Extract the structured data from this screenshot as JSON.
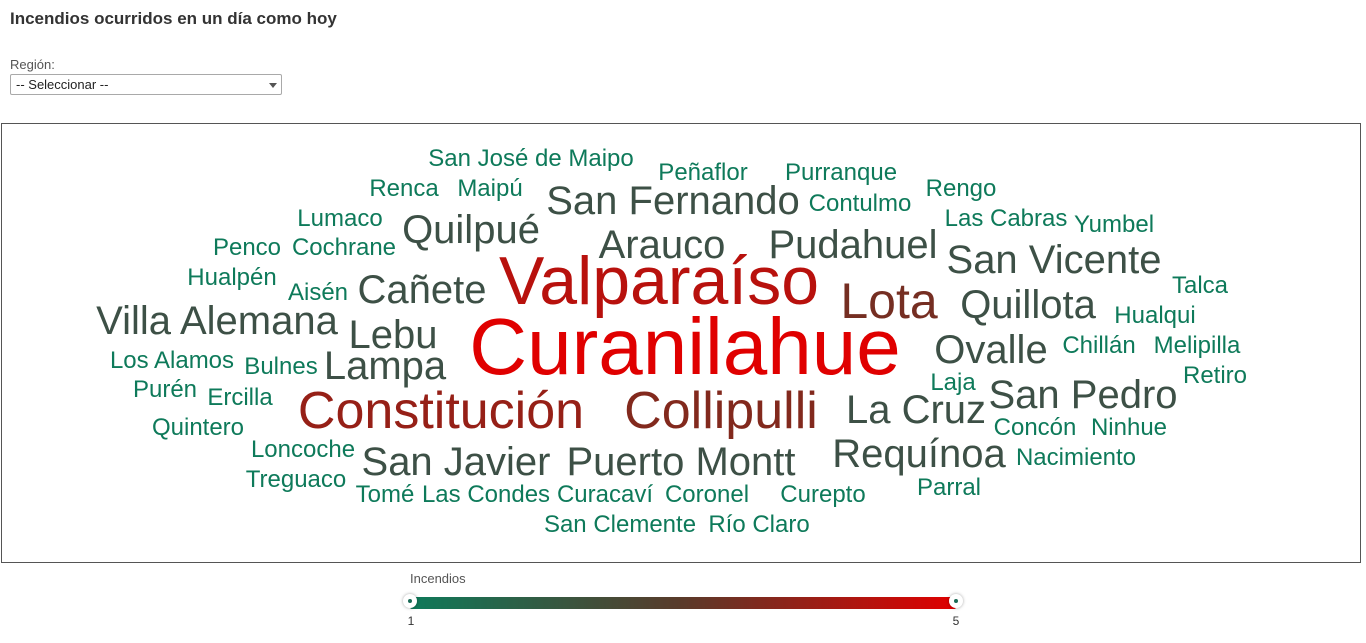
{
  "title": "Incendios ocurridos en un día como hoy",
  "region_filter": {
    "label": "Región:",
    "selected": "-- Seleccionar --"
  },
  "legend": {
    "title": "Incendios",
    "min_label": "1",
    "max_label": "5",
    "min": 1,
    "max": 5,
    "color_low": "#0e7a5a",
    "color_mid": "#5a3a2a",
    "color_high": "#e00000"
  },
  "words": [
    {
      "text": "Curanilahue",
      "value": 5
    },
    {
      "text": "Valparaíso",
      "value": 4.4
    },
    {
      "text": "Constitución",
      "value": 3.9
    },
    {
      "text": "Collipulli",
      "value": 3.6
    },
    {
      "text": "Lota",
      "value": 3.4
    },
    {
      "text": "Villa Alemana",
      "value": 2.8
    },
    {
      "text": "San Fernando",
      "value": 2.8
    },
    {
      "text": "Puerto Montt",
      "value": 2.8
    },
    {
      "text": "San Javier",
      "value": 2.8
    },
    {
      "text": "Requínoa",
      "value": 2.8
    },
    {
      "text": "Quilpué",
      "value": 2.8
    },
    {
      "text": "Arauco",
      "value": 2.8
    },
    {
      "text": "Pudahuel",
      "value": 2.8
    },
    {
      "text": "San Vicente",
      "value": 2.8
    },
    {
      "text": "Quillota",
      "value": 2.8
    },
    {
      "text": "Cañete",
      "value": 2.8
    },
    {
      "text": "Lebu",
      "value": 2.8
    },
    {
      "text": "Lampa",
      "value": 2.8
    },
    {
      "text": "Ovalle",
      "value": 2.8
    },
    {
      "text": "San Pedro",
      "value": 2.8
    },
    {
      "text": "La Cruz",
      "value": 2.8
    },
    {
      "text": "San José de Maipo",
      "value": 1
    },
    {
      "text": "Peñaflor",
      "value": 1
    },
    {
      "text": "Purranque",
      "value": 1
    },
    {
      "text": "Renca",
      "value": 1
    },
    {
      "text": "Maipú",
      "value": 1
    },
    {
      "text": "Contulmo",
      "value": 1
    },
    {
      "text": "Rengo",
      "value": 1
    },
    {
      "text": "Lumaco",
      "value": 1
    },
    {
      "text": "Las Cabras",
      "value": 1
    },
    {
      "text": "Yumbel",
      "value": 1
    },
    {
      "text": "Penco",
      "value": 1
    },
    {
      "text": "Cochrane",
      "value": 1
    },
    {
      "text": "Hualpén",
      "value": 1
    },
    {
      "text": "Talca",
      "value": 1
    },
    {
      "text": "Aisén",
      "value": 1
    },
    {
      "text": "Hualqui",
      "value": 1
    },
    {
      "text": "Los Alamos",
      "value": 1
    },
    {
      "text": "Bulnes",
      "value": 1
    },
    {
      "text": "Chillán",
      "value": 1
    },
    {
      "text": "Melipilla",
      "value": 1
    },
    {
      "text": "Purén",
      "value": 1
    },
    {
      "text": "Laja",
      "value": 1
    },
    {
      "text": "Retiro",
      "value": 1
    },
    {
      "text": "Ercilla",
      "value": 1
    },
    {
      "text": "Quintero",
      "value": 1
    },
    {
      "text": "Concón",
      "value": 1
    },
    {
      "text": "Ninhue",
      "value": 1
    },
    {
      "text": "Loncoche",
      "value": 1
    },
    {
      "text": "Nacimiento",
      "value": 1
    },
    {
      "text": "Treguaco",
      "value": 1
    },
    {
      "text": "Parral",
      "value": 1
    },
    {
      "text": "Tomé",
      "value": 1
    },
    {
      "text": "Las Condes",
      "value": 1
    },
    {
      "text": "Curacaví",
      "value": 1
    },
    {
      "text": "Coronel",
      "value": 1
    },
    {
      "text": "Curepto",
      "value": 1
    },
    {
      "text": "San Clemente",
      "value": 1
    },
    {
      "text": "Río Claro",
      "value": 1
    }
  ]
}
